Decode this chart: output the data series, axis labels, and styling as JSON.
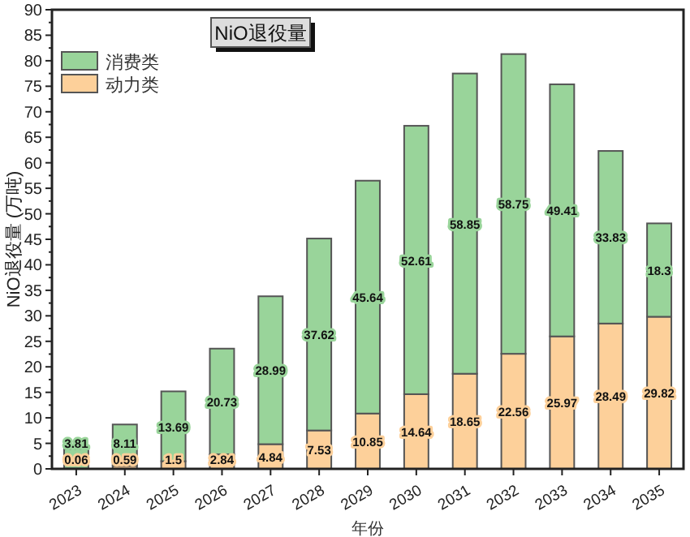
{
  "chart_data": {
    "type": "bar",
    "stacked": true,
    "title": "NiO退役量",
    "xlabel": "年份",
    "ylabel": "NiO退役量 (万吨)",
    "categories": [
      "2023",
      "2024",
      "2025",
      "2026",
      "2027",
      "2028",
      "2029",
      "2030",
      "2031",
      "2032",
      "2033",
      "2034",
      "2035"
    ],
    "series": [
      {
        "name": "动力类",
        "color": "#fdd09a",
        "values": [
          0.06,
          0.59,
          1.5,
          2.84,
          4.84,
          7.53,
          10.85,
          14.64,
          18.65,
          22.56,
          25.97,
          28.49,
          29.82
        ]
      },
      {
        "name": "消费类",
        "color": "#99d49a",
        "values": [
          3.81,
          8.11,
          13.69,
          20.73,
          28.99,
          37.62,
          45.64,
          52.61,
          58.85,
          58.75,
          49.41,
          33.83,
          18.3
        ]
      }
    ],
    "ylim": [
      0,
      90
    ],
    "yticks": [
      0,
      5,
      10,
      15,
      20,
      25,
      30,
      35,
      40,
      45,
      50,
      55,
      60,
      65,
      70,
      75,
      80,
      85,
      90
    ],
    "grid": false,
    "legend": "top left",
    "data_labels": true
  }
}
